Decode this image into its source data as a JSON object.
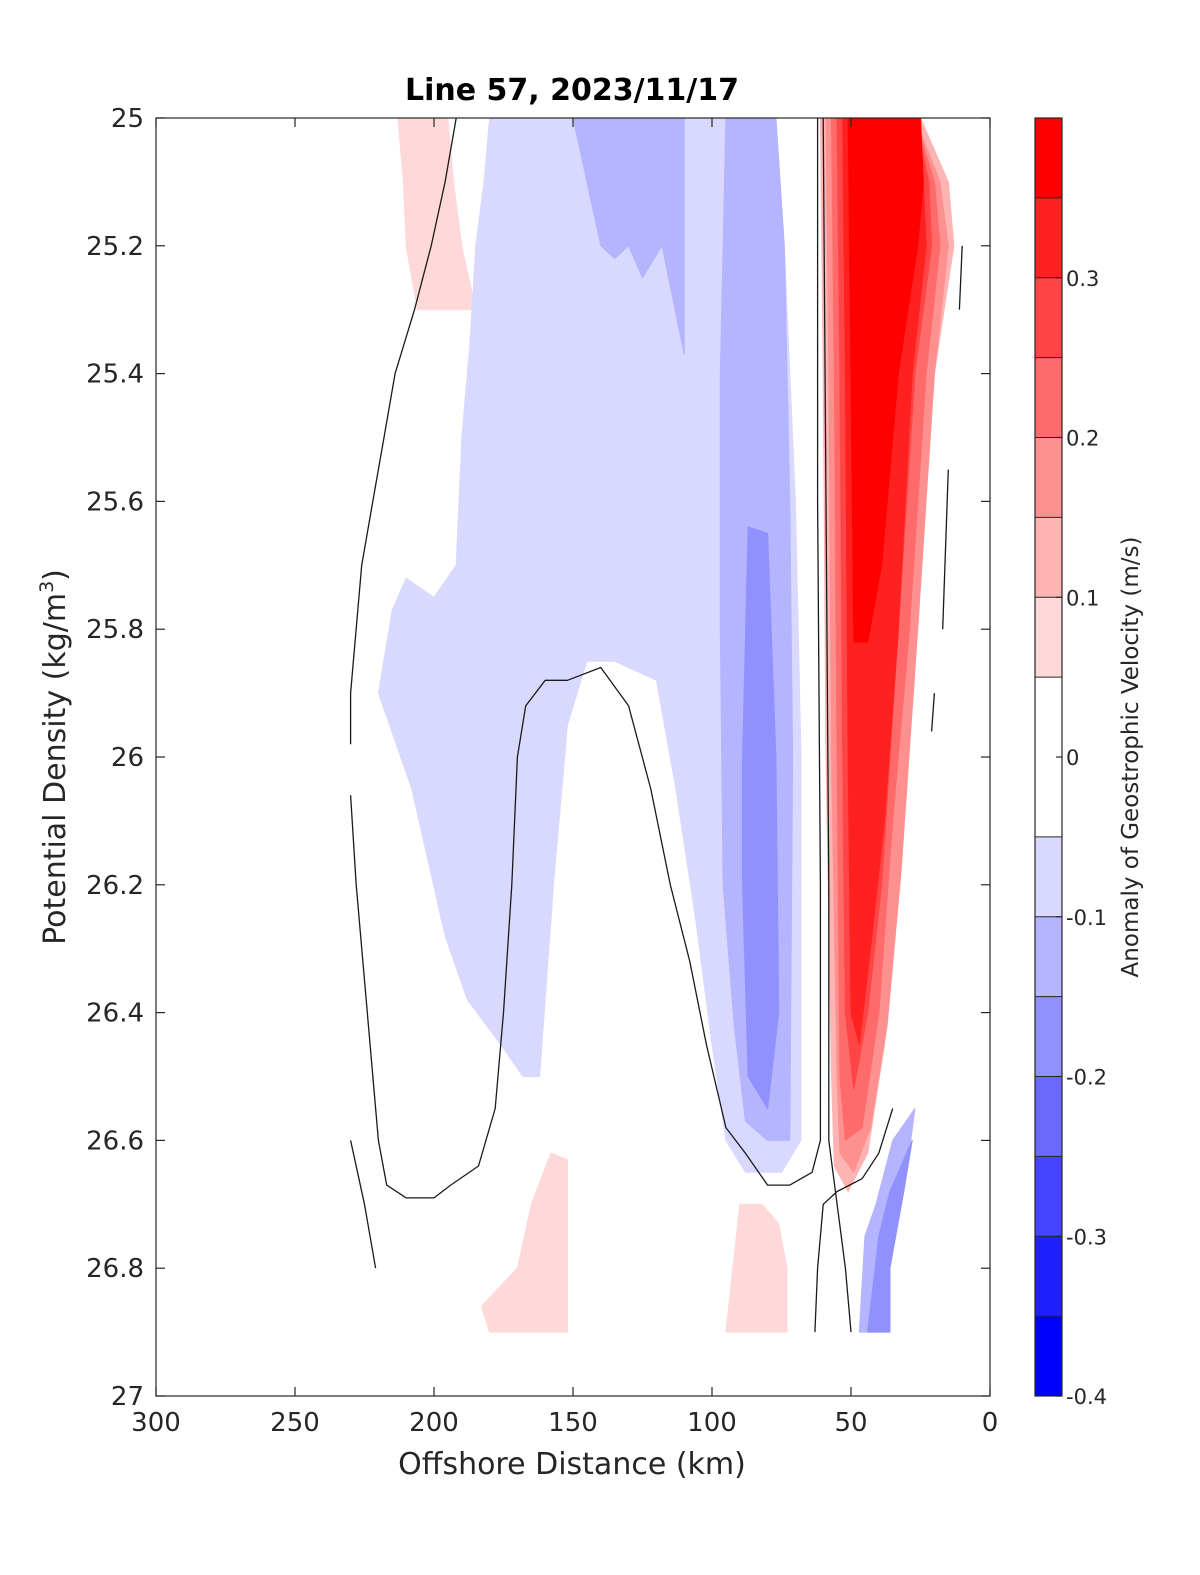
{
  "chart_data": {
    "type": "contourf",
    "title": "Line 57, 2023/11/17",
    "xlabel": "Offshore Distance (km)",
    "ylabel_main": "Potential Density (kg/m",
    "ylabel_sup": "3",
    "ylabel_close": ")",
    "xlim": [
      300,
      0
    ],
    "ylim": [
      25,
      27
    ],
    "x_reversed": true,
    "y_reversed": true,
    "x_ticks": [
      300,
      250,
      200,
      150,
      100,
      50,
      0
    ],
    "x_tick_labels": [
      "300",
      "250",
      "200",
      "150",
      "100",
      "50",
      "0"
    ],
    "y_ticks": [
      25,
      25.2,
      25.4,
      25.6,
      25.8,
      26,
      26.2,
      26.4,
      26.6,
      26.8,
      27
    ],
    "y_tick_labels": [
      "25",
      "25.2",
      "25.4",
      "25.6",
      "25.8",
      "26",
      "26.2",
      "26.4",
      "26.6",
      "26.8",
      "27"
    ],
    "colorbar": {
      "label": "Anomaly of Geostrophic Velocity (m/s)",
      "range": [
        -0.4,
        0.4
      ],
      "ticks": [
        -0.4,
        -0.3,
        -0.2,
        -0.1,
        0,
        0.1,
        0.2,
        0.3
      ],
      "tick_labels": [
        "-0.4",
        "-0.3",
        "-0.2",
        "-0.1",
        "0",
        "0.1",
        "0.2",
        "0.3"
      ],
      "levels": [
        -0.4,
        -0.35,
        -0.3,
        -0.25,
        -0.2,
        -0.15,
        -0.1,
        -0.05,
        0.05,
        0.1,
        0.15,
        0.2,
        0.25,
        0.3,
        0.35,
        0.4
      ],
      "colors": [
        "#0000ff",
        "#2020ff",
        "#4545ff",
        "#6a6aff",
        "#9090ff",
        "#b4b4ff",
        "#d9d9ff",
        "#ffffff",
        "#ffd9d9",
        "#ffb4b4",
        "#ff9090",
        "#ff6a6a",
        "#ff4545",
        "#ff2020",
        "#ff0000"
      ],
      "color_index_of_bands": [
        "<-0.35",
        "-0.35..-0.30",
        "-0.30..-0.25",
        "-0.25..-0.20",
        "-0.20..-0.15",
        "-0.15..-0.10",
        "-0.10..-0.05",
        "-0.05..0.05",
        "0.05..0.10",
        "0.10..0.15",
        "0.15..0.20",
        "0.20..0.25",
        "0.25..0.30",
        "0.30..0.35",
        ">0.35"
      ]
    },
    "data_extent": {
      "x": [
        10,
        230
      ],
      "y": [
        25,
        26.9
      ]
    },
    "regions": [
      {
        "level": 0.075,
        "color": "#ffd9d9",
        "points": [
          [
            213,
            25
          ],
          [
            195,
            25
          ],
          [
            193,
            25.1
          ],
          [
            190,
            25.2
          ],
          [
            185,
            25.3
          ],
          [
            206,
            25.3
          ],
          [
            210,
            25.2
          ],
          [
            211,
            25.1
          ]
        ]
      },
      {
        "level": 0.075,
        "color": "#ffd9d9",
        "points": [
          [
            183,
            26.86
          ],
          [
            170,
            26.8
          ],
          [
            165,
            26.7
          ],
          [
            158,
            26.62
          ],
          [
            152,
            26.63
          ],
          [
            152,
            26.9
          ],
          [
            180,
            26.9
          ]
        ]
      },
      {
        "level": 0.075,
        "color": "#ffd9d9",
        "points": [
          [
            90,
            26.7
          ],
          [
            95,
            26.9
          ],
          [
            73,
            26.9
          ],
          [
            73,
            26.8
          ],
          [
            76,
            26.73
          ],
          [
            82,
            26.7
          ]
        ]
      },
      {
        "level": -0.075,
        "color": "#d9d9ff",
        "points": [
          [
            180,
            25
          ],
          [
            110,
            25
          ],
          [
            95,
            25
          ],
          [
            77,
            25
          ],
          [
            74,
            25.2
          ],
          [
            70,
            25.6
          ],
          [
            68,
            26
          ],
          [
            68,
            26.6
          ],
          [
            75,
            26.65
          ],
          [
            88,
            26.65
          ],
          [
            95,
            26.6
          ],
          [
            100,
            26.45
          ],
          [
            106,
            26.25
          ],
          [
            113,
            26.05
          ],
          [
            120,
            25.88
          ],
          [
            135,
            25.85
          ],
          [
            145,
            25.85
          ],
          [
            152,
            25.95
          ],
          [
            157,
            26.2
          ],
          [
            162,
            26.5
          ],
          [
            168,
            26.5
          ],
          [
            176,
            26.45
          ],
          [
            188,
            26.38
          ],
          [
            196,
            26.28
          ],
          [
            208,
            26.05
          ],
          [
            220,
            25.9
          ],
          [
            215,
            25.77
          ],
          [
            210,
            25.72
          ],
          [
            200,
            25.75
          ],
          [
            192,
            25.7
          ],
          [
            190,
            25.5
          ],
          [
            187,
            25.35
          ],
          [
            185,
            25.2
          ],
          [
            182,
            25.1
          ]
        ]
      },
      {
        "level": -0.125,
        "color": "#b4b4ff",
        "points": [
          [
            150,
            25
          ],
          [
            110,
            25
          ],
          [
            110,
            25.37
          ],
          [
            118,
            25.2
          ],
          [
            125,
            25.25
          ],
          [
            130,
            25.2
          ],
          [
            135,
            25.22
          ],
          [
            140,
            25.2
          ],
          [
            145,
            25.1
          ]
        ]
      },
      {
        "level": -0.125,
        "color": "#b4b4ff",
        "points": [
          [
            95,
            25
          ],
          [
            77,
            25
          ],
          [
            74,
            25.2
          ],
          [
            72,
            25.6
          ],
          [
            71,
            26
          ],
          [
            72,
            26.6
          ],
          [
            80,
            26.6
          ],
          [
            88,
            26.57
          ],
          [
            92,
            26.42
          ],
          [
            96,
            26.2
          ],
          [
            97,
            25.8
          ],
          [
            97,
            25.4
          ],
          [
            96,
            25.2
          ]
        ]
      },
      {
        "level": -0.175,
        "color": "#9090ff",
        "points": [
          [
            87,
            25.64
          ],
          [
            80,
            25.65
          ],
          [
            77,
            26
          ],
          [
            76,
            26.4
          ],
          [
            80,
            26.55
          ],
          [
            87,
            26.5
          ],
          [
            89,
            26.2
          ],
          [
            89,
            26
          ]
        ]
      },
      {
        "level": -0.125,
        "color": "#b4b4ff",
        "points": [
          [
            47,
            26.9
          ],
          [
            36,
            26.9
          ],
          [
            36,
            26.8
          ],
          [
            30,
            26.65
          ],
          [
            27,
            26.55
          ],
          [
            35,
            26.6
          ],
          [
            41,
            26.7
          ],
          [
            45,
            26.75
          ]
        ]
      },
      {
        "level": -0.175,
        "color": "#9090ff",
        "points": [
          [
            44,
            26.9
          ],
          [
            36,
            26.9
          ],
          [
            36,
            26.8
          ],
          [
            31,
            26.68
          ],
          [
            28,
            26.6
          ],
          [
            36,
            26.68
          ],
          [
            40,
            26.75
          ]
        ]
      },
      {
        "level": 0.125,
        "color": "#ffb4b4",
        "points": [
          [
            61,
            25
          ],
          [
            60,
            25.4
          ],
          [
            59,
            26
          ],
          [
            57,
            26.5
          ],
          [
            56,
            26.64
          ],
          [
            51,
            26.68
          ],
          [
            44,
            26.62
          ],
          [
            38,
            26.45
          ],
          [
            33,
            26.2
          ],
          [
            27,
            25.8
          ],
          [
            20,
            25.4
          ],
          [
            13,
            25.2
          ],
          [
            15,
            25.1
          ],
          [
            25,
            25
          ]
        ]
      },
      {
        "level": 0.175,
        "color": "#ff9090",
        "points": [
          [
            59,
            25
          ],
          [
            58,
            25.4
          ],
          [
            57,
            26
          ],
          [
            55,
            26.5
          ],
          [
            54,
            26.62
          ],
          [
            49,
            26.65
          ],
          [
            43,
            26.58
          ],
          [
            37,
            26.42
          ],
          [
            32,
            26.18
          ],
          [
            26,
            25.8
          ],
          [
            20,
            25.4
          ],
          [
            15,
            25.2
          ],
          [
            18,
            25.1
          ],
          [
            27,
            25
          ]
        ]
      },
      {
        "level": 0.225,
        "color": "#ff6a6a",
        "points": [
          [
            57,
            25
          ],
          [
            56,
            25.4
          ],
          [
            55,
            26
          ],
          [
            54,
            26.5
          ],
          [
            52,
            26.6
          ],
          [
            46,
            26.58
          ],
          [
            40,
            26.4
          ],
          [
            35,
            26.1
          ],
          [
            29,
            25.8
          ],
          [
            23,
            25.4
          ],
          [
            18,
            25.2
          ],
          [
            20,
            25.1
          ],
          [
            27,
            25
          ]
        ]
      },
      {
        "level": 0.275,
        "color": "#ff4545",
        "points": [
          [
            55,
            25
          ],
          [
            54,
            25.4
          ],
          [
            53,
            26
          ],
          [
            52,
            26.4
          ],
          [
            49,
            26.52
          ],
          [
            44,
            26.4
          ],
          [
            39,
            26.2
          ],
          [
            33,
            25.8
          ],
          [
            27,
            25.4
          ],
          [
            21,
            25.2
          ],
          [
            22,
            25.1
          ],
          [
            27,
            25
          ]
        ]
      },
      {
        "level": 0.325,
        "color": "#ff2020",
        "points": [
          [
            53,
            25
          ],
          [
            52,
            25.4
          ],
          [
            51,
            26
          ],
          [
            50,
            26.4
          ],
          [
            47,
            26.45
          ],
          [
            43,
            26.3
          ],
          [
            38,
            26.1
          ],
          [
            33,
            25.8
          ],
          [
            28,
            25.4
          ],
          [
            23,
            25.2
          ],
          [
            24,
            25.1
          ],
          [
            27,
            25
          ]
        ]
      },
      {
        "level": 0.375,
        "color": "#ff0000",
        "points": [
          [
            51,
            25
          ],
          [
            50,
            25.4
          ],
          [
            49,
            25.82
          ],
          [
            44,
            25.82
          ],
          [
            39,
            25.7
          ],
          [
            33,
            25.4
          ],
          [
            26,
            25.2
          ],
          [
            24,
            25.1
          ],
          [
            25,
            25
          ]
        ]
      }
    ],
    "zero_contours": [
      {
        "points": [
          [
            192,
            25
          ],
          [
            196,
            25.1
          ],
          [
            201,
            25.2
          ],
          [
            207,
            25.3
          ],
          [
            214,
            25.4
          ],
          [
            218,
            25.5
          ],
          [
            222,
            25.6
          ],
          [
            226,
            25.7
          ],
          [
            230,
            25.9
          ],
          [
            230,
            25.98
          ]
        ]
      },
      {
        "points": [
          [
            230,
            26.06
          ],
          [
            228,
            26.2
          ],
          [
            224,
            26.4
          ],
          [
            220,
            26.6
          ],
          [
            217,
            26.67
          ],
          [
            210,
            26.69
          ],
          [
            200,
            26.69
          ],
          [
            194,
            26.67
          ],
          [
            184,
            26.64
          ],
          [
            178,
            26.55
          ],
          [
            175,
            26.4
          ],
          [
            172,
            26.2
          ],
          [
            170,
            26
          ],
          [
            167,
            25.92
          ],
          [
            160,
            25.88
          ],
          [
            152,
            25.88
          ],
          [
            140,
            25.86
          ],
          [
            130,
            25.92
          ],
          [
            122,
            26.05
          ],
          [
            115,
            26.2
          ],
          [
            108,
            26.32
          ],
          [
            102,
            26.45
          ],
          [
            95,
            26.58
          ],
          [
            88,
            26.62
          ],
          [
            80,
            26.67
          ],
          [
            72,
            26.67
          ],
          [
            64,
            26.65
          ],
          [
            61,
            26.6
          ],
          [
            61,
            26.2
          ],
          [
            62,
            25.6
          ],
          [
            62,
            25
          ]
        ]
      },
      {
        "points": [
          [
            60,
            25
          ],
          [
            59,
            25.6
          ],
          [
            58,
            26.2
          ],
          [
            58,
            26.6
          ],
          [
            55,
            26.7
          ],
          [
            52,
            26.8
          ],
          [
            50,
            26.9
          ]
        ]
      },
      {
        "points": [
          [
            63,
            26.9
          ],
          [
            62,
            26.8
          ],
          [
            60,
            26.7
          ],
          [
            55,
            26.68
          ],
          [
            46,
            26.66
          ],
          [
            40,
            26.62
          ],
          [
            35,
            26.55
          ]
        ]
      },
      {
        "points": [
          [
            230,
            26.6
          ],
          [
            225,
            26.7
          ],
          [
            221,
            26.8
          ]
        ]
      },
      {
        "points": [
          [
            10,
            25.2
          ],
          [
            11,
            25.3
          ]
        ]
      },
      {
        "points": [
          [
            15,
            25.55
          ],
          [
            17,
            25.8
          ]
        ]
      },
      {
        "points": [
          [
            20,
            25.9
          ],
          [
            21,
            25.96
          ]
        ]
      }
    ]
  }
}
